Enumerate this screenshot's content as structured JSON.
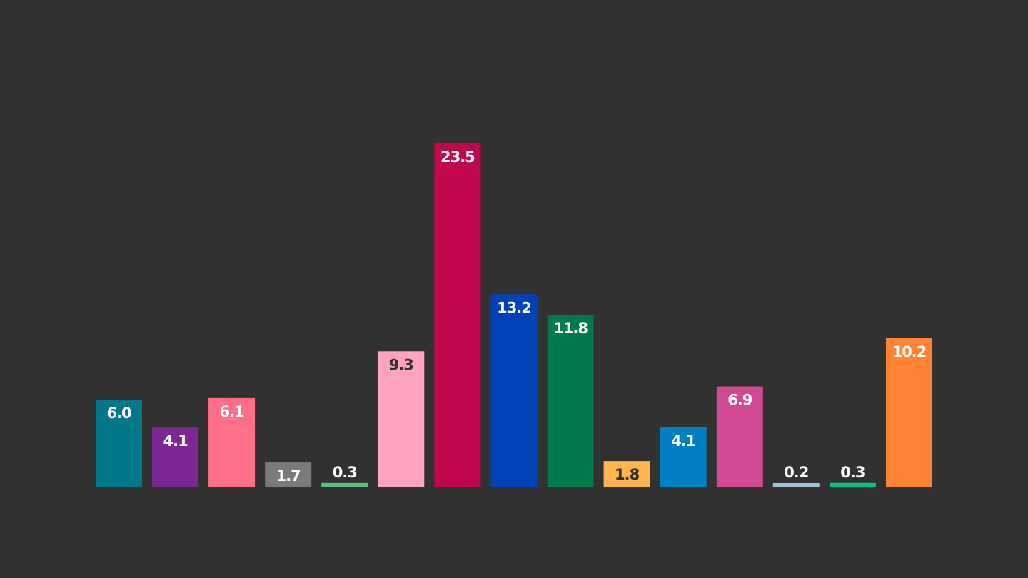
{
  "chart_data": {
    "type": "bar",
    "value_labels": [
      "6.0",
      "4.1",
      "6.1",
      "1.7",
      "0.3",
      "9.3",
      "23.5",
      "13.2",
      "11.8",
      "1.8",
      "4.1",
      "6.9",
      "0.2",
      "0.3",
      "10.2"
    ],
    "values": [
      6.0,
      4.1,
      6.1,
      1.7,
      0.3,
      9.3,
      23.5,
      13.2,
      11.8,
      1.8,
      4.1,
      6.9,
      0.2,
      0.3,
      10.2
    ],
    "colors": [
      "#00778a",
      "#7b2895",
      "#ff6f88",
      "#7a7a7a",
      "#5ec07e",
      "#ffa3be",
      "#c0074e",
      "#0041b8",
      "#00794b",
      "#ffb54d",
      "#0080c4",
      "#cf4a92",
      "#9dc1d9",
      "#00c283",
      "#ff8333"
    ],
    "label_colors": [
      "#ffffff",
      "#ffffff",
      "#ffffff",
      "#ffffff",
      "#ffffff",
      "#313131",
      "#ffffff",
      "#ffffff",
      "#ffffff",
      "#313131",
      "#ffffff",
      "#ffffff",
      "#ffffff",
      "#ffffff",
      "#ffffff"
    ],
    "ylim": [
      0,
      23.5
    ],
    "grid": false,
    "legend": false,
    "title": "",
    "xlabel": "",
    "ylabel": ""
  },
  "theme": {
    "background": "#313131"
  }
}
